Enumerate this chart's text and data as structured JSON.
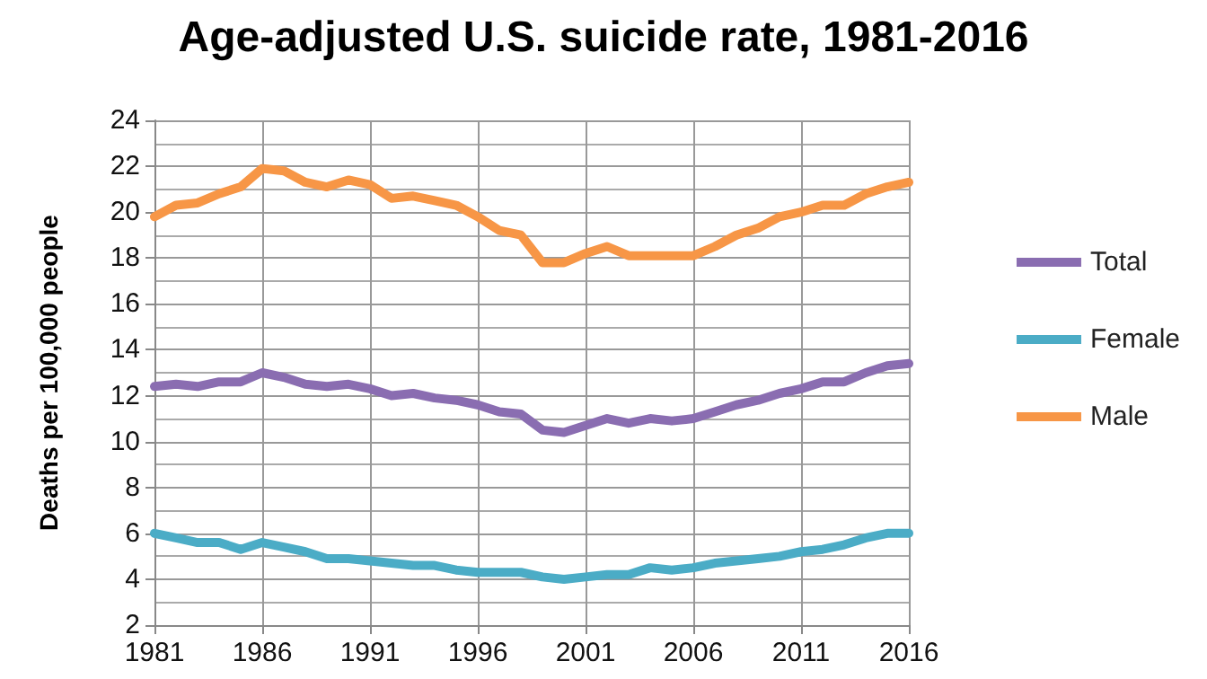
{
  "chart_data": {
    "type": "line",
    "title": "Age-adjusted U.S. suicide rate, 1981-2016",
    "ylabel": "Deaths per 100,000 people",
    "x": [
      1981,
      1982,
      1983,
      1984,
      1985,
      1986,
      1987,
      1988,
      1989,
      1990,
      1991,
      1992,
      1993,
      1994,
      1995,
      1996,
      1997,
      1998,
      1999,
      2000,
      2001,
      2002,
      2003,
      2004,
      2005,
      2006,
      2007,
      2008,
      2009,
      2010,
      2011,
      2012,
      2013,
      2014,
      2015,
      2016
    ],
    "series": [
      {
        "name": "Total",
        "color": "#8a6db1",
        "values": [
          12.4,
          12.5,
          12.4,
          12.6,
          12.6,
          13.0,
          12.8,
          12.5,
          12.4,
          12.5,
          12.3,
          12.0,
          12.1,
          11.9,
          11.8,
          11.6,
          11.3,
          11.2,
          10.5,
          10.4,
          10.7,
          11.0,
          10.8,
          11.0,
          10.9,
          11.0,
          11.3,
          11.6,
          11.8,
          12.1,
          12.3,
          12.6,
          12.6,
          13.0,
          13.3,
          13.4
        ]
      },
      {
        "name": "Female",
        "color": "#4bacc6",
        "values": [
          6.0,
          5.8,
          5.6,
          5.6,
          5.3,
          5.6,
          5.4,
          5.2,
          4.9,
          4.9,
          4.8,
          4.7,
          4.6,
          4.6,
          4.4,
          4.3,
          4.3,
          4.3,
          4.1,
          4.0,
          4.1,
          4.2,
          4.2,
          4.5,
          4.4,
          4.5,
          4.7,
          4.8,
          4.9,
          5.0,
          5.2,
          5.3,
          5.5,
          5.8,
          6.0,
          6.0
        ]
      },
      {
        "name": "Male",
        "color": "#f79646",
        "values": [
          19.8,
          20.3,
          20.4,
          20.8,
          21.1,
          21.9,
          21.8,
          21.3,
          21.1,
          21.4,
          21.2,
          20.6,
          20.7,
          20.5,
          20.3,
          19.8,
          19.2,
          19.0,
          17.8,
          17.8,
          18.2,
          18.5,
          18.1,
          18.1,
          18.1,
          18.1,
          18.5,
          19.0,
          19.3,
          19.8,
          20.0,
          20.3,
          20.3,
          20.8,
          21.1,
          21.3
        ]
      }
    ],
    "xlim": [
      1981,
      2016
    ],
    "xticks": [
      1981,
      1986,
      1991,
      1996,
      2001,
      2006,
      2011,
      2016
    ],
    "ylim": [
      2,
      24
    ],
    "yticks": [
      2,
      4,
      6,
      8,
      10,
      12,
      14,
      16,
      18,
      20,
      22,
      24
    ],
    "grid": true,
    "legend": "right",
    "marker": "none",
    "line_style": "solid"
  }
}
